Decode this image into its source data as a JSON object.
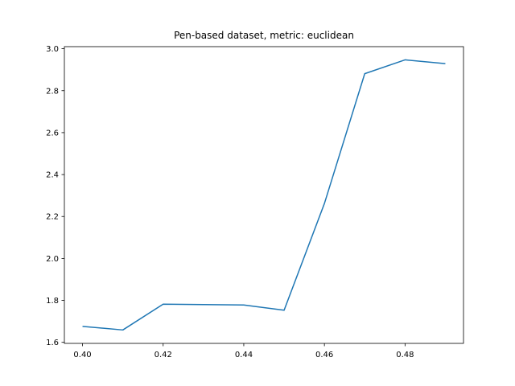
{
  "chart_data": {
    "type": "line",
    "title": "Pen-based dataset, metric: euclidean",
    "xlabel": "",
    "ylabel": "",
    "xlim": [
      0.3955,
      0.4945
    ],
    "ylim": [
      1.595,
      3.01
    ],
    "grid": false,
    "x_ticks": [
      "0.40",
      "0.42",
      "0.44",
      "0.46",
      "0.48"
    ],
    "y_ticks": [
      "1.6",
      "1.8",
      "2.0",
      "2.2",
      "2.4",
      "2.6",
      "2.8",
      "3.0"
    ],
    "series": [
      {
        "color": "#1f77b4",
        "x": [
          0.4,
          0.41,
          0.42,
          0.43,
          0.44,
          0.45,
          0.46,
          0.47,
          0.48,
          0.49
        ],
        "y": [
          1.676,
          1.659,
          1.782,
          1.78,
          1.778,
          1.753,
          2.262,
          2.881,
          2.947,
          2.929
        ]
      }
    ]
  }
}
